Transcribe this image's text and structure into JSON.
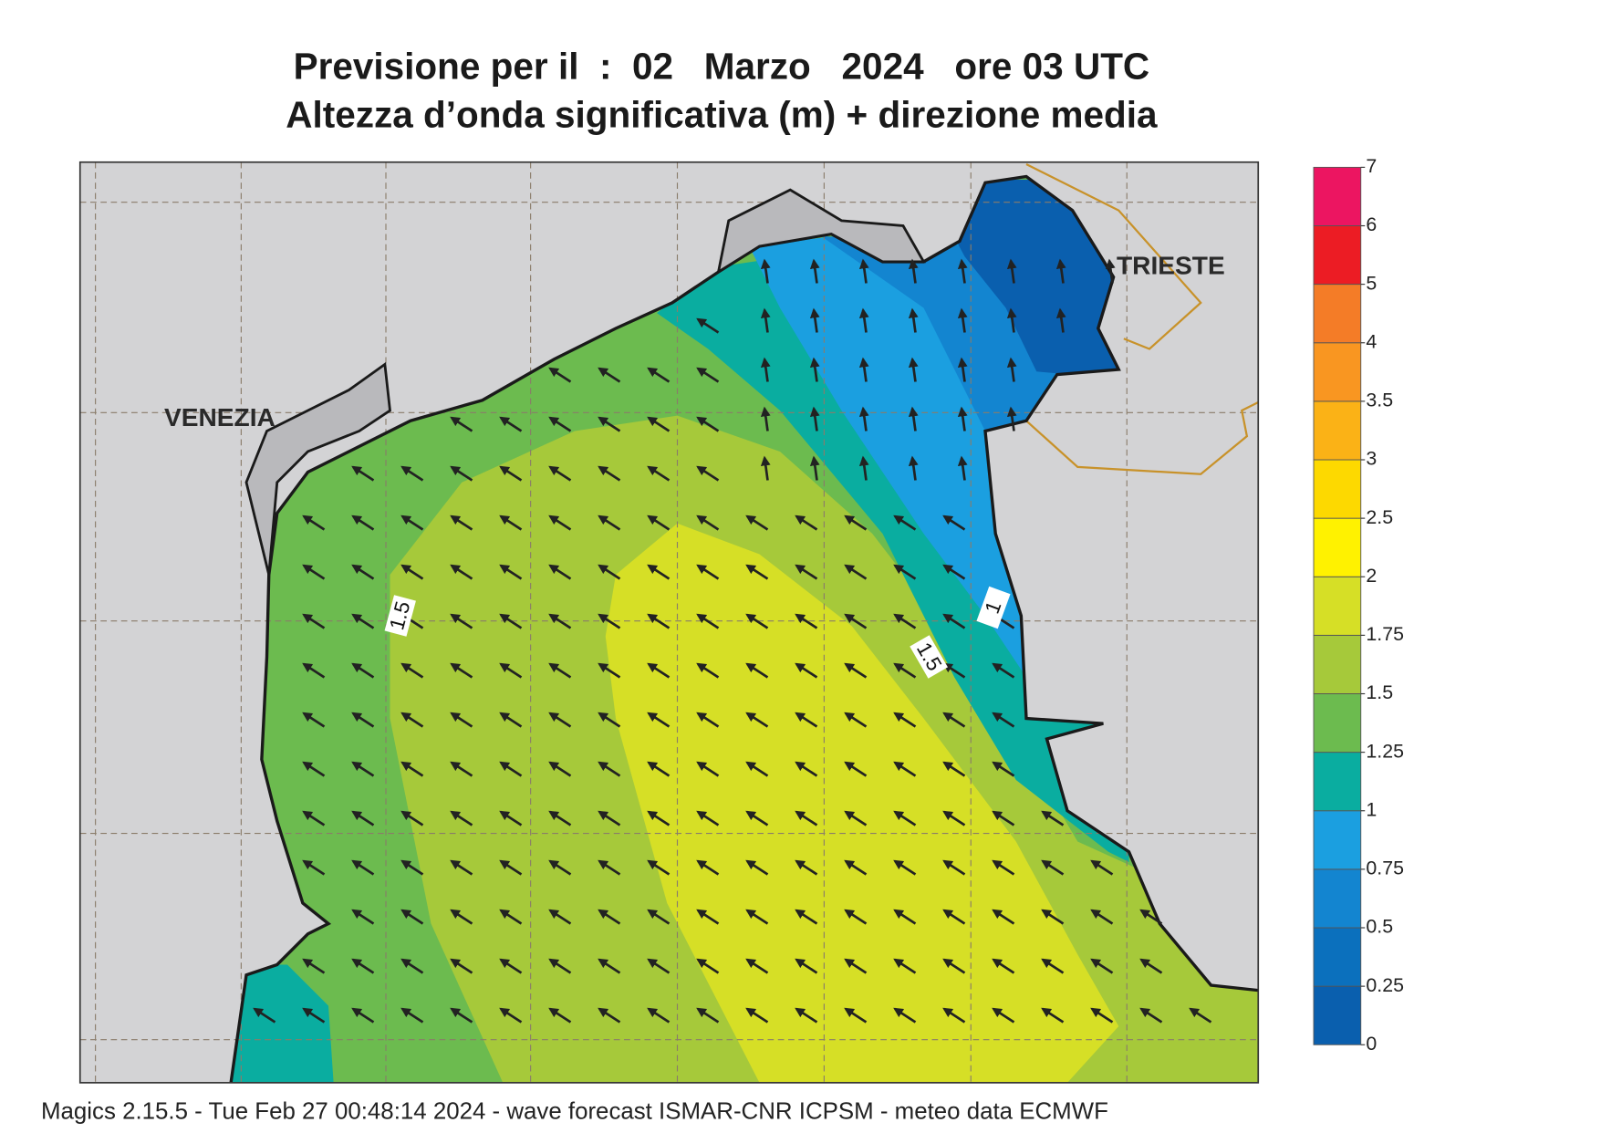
{
  "title": [
    "Previsione per il  :  02   Marzo   2024   ore 03 UTC",
    "Altezza d’onda significativa (m) + direzione media"
  ],
  "places": [
    "VENEZIA",
    "TRIESTE"
  ],
  "legend": {
    "levels": [
      0,
      0.25,
      0.5,
      0.75,
      1,
      1.25,
      1.5,
      1.75,
      2,
      2.5,
      3,
      3.5,
      4,
      5,
      6,
      7
    ],
    "colors": [
      "#0a5fae",
      "#0b70bd",
      "#1385d0",
      "#1b9fe0",
      "#0aada0",
      "#6cbb4f",
      "#a6c93a",
      "#d6df26",
      "#fff200",
      "#fdd900",
      "#fbb216",
      "#f99621",
      "#f47c27",
      "#ec1c24",
      "#ec1561"
    ]
  },
  "contour_labels": [
    1.5,
    1.5,
    1
  ],
  "footer": "Magics 2.15.5 - Tue Feb 27 00:48:14 2024 - wave forecast  ISMAR-CNR  ICPSM - meteo data    ECMWF"
}
